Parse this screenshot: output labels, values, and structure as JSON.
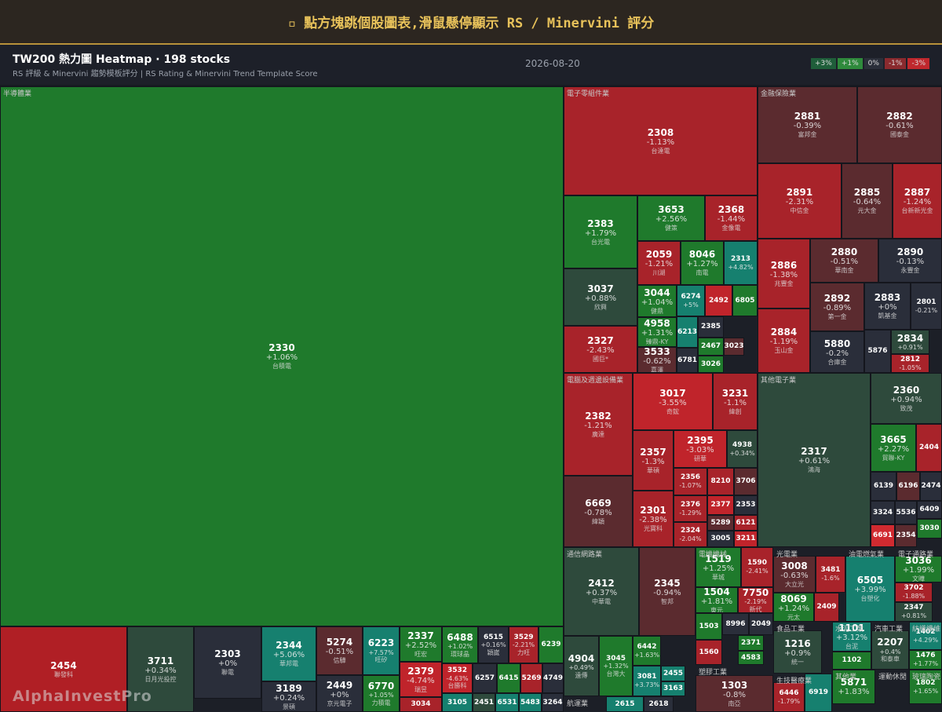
{
  "header": {
    "title": "▫ 點方塊跳個股圖表,滑鼠懸停顯示 RS / Minervini 評分"
  },
  "subheader": {
    "title": "TW200 熱力圖 Heatmap · 198 stocks",
    "subtitle": "RS 評級 & Minervini 趨勢模板評分 | RS Rating & Minervini Trend Template Score",
    "date": "2026-08-20"
  },
  "legend": [
    {
      "label": "+3%",
      "color": "#1f5e3a"
    },
    {
      "label": "+1%",
      "color": "#2f8a3c"
    },
    {
      "label": "0%",
      "color": "#2b2f3a"
    },
    {
      "label": "-1%",
      "color": "#8a2a2e"
    },
    {
      "label": "-3%",
      "color": "#c0282d"
    }
  ],
  "watermark": "AlphaInvestPro",
  "sectors": [
    {
      "name": "半導體業",
      "stocks": [
        {
          "code": "2330",
          "change": 1.06,
          "change_label": "+1.06%",
          "name": "台積電"
        },
        {
          "code": "2454",
          "name": "聯發科",
          "color": "#b01f25"
        },
        {
          "code": "3711",
          "change": 0.34,
          "change_label": "+0.34%",
          "name": "日月光投控"
        },
        {
          "code": "2303",
          "change": 0,
          "change_label": "+0%",
          "name": "聯電"
        },
        {
          "code": "2344",
          "change": 5.06,
          "change_label": "+5.06%",
          "name": "華邦電"
        },
        {
          "code": "3189",
          "change": 0.24,
          "change_label": "+0.24%",
          "name": "景碩"
        },
        {
          "code": "5274",
          "change": -0.51,
          "change_label": "-0.51%",
          "name": "信驊"
        },
        {
          "code": "2449",
          "change": 0,
          "change_label": "+0%",
          "name": "京元電子"
        },
        {
          "code": "6223",
          "change": 7.57,
          "change_label": "+7.57%",
          "name": "旺矽"
        },
        {
          "code": "6770",
          "change": 1.05,
          "change_label": "+1.05%",
          "name": "力積電"
        },
        {
          "code": "2337",
          "change": 2.52,
          "change_label": "+2.52%",
          "name": "旺宏"
        },
        {
          "code": "2379",
          "change": -4.74,
          "change_label": "-4.74%",
          "name": "瑞昱"
        },
        {
          "code": "3034",
          "color": "#a8232a"
        },
        {
          "code": "6488",
          "change": 1.02,
          "change_label": "+1.02%",
          "name": "環球晶"
        },
        {
          "code": "6515",
          "change": 0.16,
          "change_label": "+0.16%",
          "name": "穎崴"
        },
        {
          "code": "3529",
          "change": -2.21,
          "change_label": "-2.21%",
          "name": "力旺"
        },
        {
          "code": "6239",
          "color": "#1f7a2c"
        },
        {
          "code": "3532",
          "change": -4.63,
          "change_label": "-4.63%",
          "name": "台勝科"
        },
        {
          "code": "6257",
          "color": "#2a2e3a"
        },
        {
          "code": "6415",
          "color": "#1f7a2c"
        },
        {
          "code": "5269",
          "color": "#a8232a"
        },
        {
          "code": "4749",
          "color": "#2a2e3a"
        },
        {
          "code": "3105",
          "color": "#16806f"
        },
        {
          "code": "2451",
          "color": "#2e4a3c"
        },
        {
          "code": "6531",
          "color": "#16806f"
        },
        {
          "code": "5483",
          "color": "#16806f"
        },
        {
          "code": "3264",
          "color": "#2a2e3a"
        }
      ]
    },
    {
      "name": "電子零組件業",
      "stocks": [
        {
          "code": "2308",
          "change": -1.13,
          "change_label": "-1.13%",
          "name": "台達電"
        },
        {
          "code": "2383",
          "change": 1.79,
          "change_label": "+1.79%",
          "name": "台光電"
        },
        {
          "code": "3037",
          "change": 0.88,
          "change_label": "+0.88%",
          "name": "欣興"
        },
        {
          "code": "2327",
          "change": -2.43,
          "change_label": "-2.43%",
          "name": "國巨*"
        },
        {
          "code": "3653",
          "change": 2.56,
          "change_label": "+2.56%",
          "name": "健策"
        },
        {
          "code": "2368",
          "change": -1.44,
          "change_label": "-1.44%",
          "name": "金像電"
        },
        {
          "code": "2059",
          "change": -1.21,
          "change_label": "-1.21%",
          "name": "川湖"
        },
        {
          "code": "8046",
          "change": 1.27,
          "change_label": "+1.27%",
          "name": "南電"
        },
        {
          "code": "2313",
          "change": 4.82,
          "change_label": "+4.82%"
        },
        {
          "code": "3044",
          "change": 1.04,
          "change_label": "+1.04%",
          "name": "健鼎"
        },
        {
          "code": "4958",
          "change": 1.31,
          "change_label": "+1.31%",
          "name": "臻鼎-KY"
        },
        {
          "code": "3533",
          "change": -0.62,
          "change_label": "-0.62%",
          "name": "嘉澤"
        },
        {
          "code": "6274",
          "change": 5,
          "change_label": "+5%"
        },
        {
          "code": "2492",
          "color": "#c0242b"
        },
        {
          "code": "6805",
          "color": "#1f7a2c"
        },
        {
          "code": "6213",
          "color": "#16806f"
        },
        {
          "code": "2385",
          "color": "#2a2e3a"
        },
        {
          "code": "2467",
          "color": "#1f7a2c"
        },
        {
          "code": "3026",
          "color": "#1f7a2c"
        },
        {
          "code": "6781",
          "color": "#2a2e3a"
        },
        {
          "code": "3023",
          "color": "#5b2b2f"
        }
      ]
    },
    {
      "name": "金融保險業",
      "stocks": [
        {
          "code": "2881",
          "change": -0.39,
          "change_label": "-0.39%",
          "name": "富邦金"
        },
        {
          "code": "2882",
          "change": -0.61,
          "change_label": "-0.61%",
          "name": "國泰金"
        },
        {
          "code": "2891",
          "change": -2.31,
          "change_label": "-2.31%",
          "name": "中信金"
        },
        {
          "code": "2885",
          "change": -0.64,
          "change_label": "-0.64%",
          "name": "元大金"
        },
        {
          "code": "2887",
          "change": -1.24,
          "change_label": "-1.24%",
          "name": "台新新光金"
        },
        {
          "code": "2886",
          "change": -1.38,
          "change_label": "-1.38%",
          "name": "兆豐金"
        },
        {
          "code": "2884",
          "change": -1.19,
          "change_label": "-1.19%",
          "name": "玉山金"
        },
        {
          "code": "2880",
          "change": -0.51,
          "change_label": "-0.51%",
          "name": "華南金"
        },
        {
          "code": "2890",
          "change": -0.13,
          "change_label": "-0.13%",
          "name": "永豐金"
        },
        {
          "code": "2892",
          "change": -0.89,
          "change_label": "-0.89%",
          "name": "第一金"
        },
        {
          "code": "2883",
          "change": 0,
          "change_label": "+0%",
          "name": "凱基金"
        },
        {
          "code": "2801",
          "change": -0.21,
          "change_label": "-0.21%"
        },
        {
          "code": "5880",
          "change": -0.2,
          "change_label": "-0.2%",
          "name": "合庫金"
        },
        {
          "code": "5876",
          "color": "#2a2e3a"
        },
        {
          "code": "2834",
          "change": 0.91,
          "change_label": "+0.91%"
        },
        {
          "code": "2812",
          "change": -1.05,
          "change_label": "-1.05%"
        }
      ]
    },
    {
      "name": "電腦及週邊設備業",
      "stocks": [
        {
          "code": "2382",
          "change": -1.21,
          "change_label": "-1.21%",
          "name": "廣達"
        },
        {
          "code": "6669",
          "change": -0.78,
          "change_label": "-0.78%",
          "name": "緯穎"
        },
        {
          "code": "3017",
          "change": -3.55,
          "change_label": "-3.55%",
          "name": "奇鋐"
        },
        {
          "code": "3231",
          "change": -1.1,
          "change_label": "-1.1%",
          "name": "緯創"
        },
        {
          "code": "2357",
          "change": -1.3,
          "change_label": "-1.3%",
          "name": "華碩"
        },
        {
          "code": "2301",
          "change": -2.38,
          "change_label": "-2.38%",
          "name": "光寶科"
        },
        {
          "code": "2395",
          "change": -3.03,
          "change_label": "-3.03%",
          "name": "研華"
        },
        {
          "code": "4938",
          "change": 0.34,
          "change_label": "+0.34%"
        },
        {
          "code": "2356",
          "change": -1.07,
          "change_label": "-1.07%"
        },
        {
          "code": "8210",
          "color": "#a8232a"
        },
        {
          "code": "3706",
          "color": "#5b2b2f"
        },
        {
          "code": "2376",
          "change": -1.29,
          "change_label": "-1.29%"
        },
        {
          "code": "2377",
          "color": "#c0242b"
        },
        {
          "code": "2353",
          "color": "#2a2e3a"
        },
        {
          "code": "2324",
          "change": -2.04,
          "change_label": "-2.04%"
        },
        {
          "code": "5289",
          "color": "#5b2b2f"
        },
        {
          "code": "6121",
          "color": "#a8232a"
        },
        {
          "code": "3005",
          "color": "#2a2e3a"
        },
        {
          "code": "3211",
          "color": "#c0242b"
        }
      ]
    },
    {
      "name": "其他電子業",
      "stocks": [
        {
          "code": "2317",
          "change": 0.61,
          "change_label": "+0.61%",
          "name": "鴻海"
        },
        {
          "code": "2360",
          "change": 0.94,
          "change_label": "+0.94%",
          "name": "致茂"
        },
        {
          "code": "3665",
          "change": 2.27,
          "change_label": "+2.27%",
          "name": "貿聯-KY"
        },
        {
          "code": "2404",
          "color": "#a8232a"
        },
        {
          "code": "6139",
          "color": "#2a2e3a"
        },
        {
          "code": "6196",
          "color": "#5b2b2f"
        },
        {
          "code": "2474",
          "color": "#2a2e3a"
        },
        {
          "code": "3324",
          "color": "#2a2e3a"
        },
        {
          "code": "5536",
          "color": "#2a2e3a"
        },
        {
          "code": "6409",
          "color": "#2a2e3a"
        },
        {
          "code": "6691",
          "color": "#d02a30"
        },
        {
          "code": "2354",
          "color": "#5b2b2f"
        },
        {
          "code": "3030",
          "color": "#1f7a2c"
        }
      ]
    },
    {
      "name": "通信網路業",
      "stocks": [
        {
          "code": "2412",
          "change": 0.37,
          "change_label": "+0.37%",
          "name": "中華電"
        },
        {
          "code": "2345",
          "change": -0.94,
          "change_label": "-0.94%",
          "name": "智邦"
        },
        {
          "code": "4904",
          "change": 0.49,
          "change_label": "+0.49%",
          "name": "遠傳"
        },
        {
          "code": "3045",
          "change": 1.32,
          "change_label": "+1.32%",
          "name": "台灣大"
        },
        {
          "code": "6442",
          "change": 1.63,
          "change_label": "+1.63%"
        },
        {
          "code": "3081",
          "change": 3.73,
          "change_label": "+3.73%"
        },
        {
          "code": "2455",
          "color": "#16806f"
        },
        {
          "code": "3163",
          "color": "#16806f"
        }
      ]
    },
    {
      "name": "航運業",
      "stocks": [
        {
          "code": "2615",
          "color": "#16806f"
        },
        {
          "code": "2618",
          "color": "#2a2e3a"
        }
      ]
    },
    {
      "name": "電機機械",
      "stocks": [
        {
          "code": "1519",
          "change": 1.25,
          "change_label": "+1.25%",
          "name": "華城"
        },
        {
          "code": "1590",
          "change": -2.41,
          "change_label": "-2.41%"
        },
        {
          "code": "1504",
          "change": 1.81,
          "change_label": "+1.81%",
          "name": "東元"
        },
        {
          "code": "7750",
          "change": -2.19,
          "change_label": "-2.19%",
          "name": "新代"
        },
        {
          "code": "1503",
          "color": "#1f7a2c"
        },
        {
          "code": "8996",
          "color": "#2a2e3a"
        },
        {
          "code": "2049",
          "color": "#2a2e3a"
        },
        {
          "code": "1560",
          "color": "#a8232a"
        },
        {
          "code": "2371",
          "color": "#1f7a2c"
        },
        {
          "code": "4583",
          "color": "#1f7a2c"
        }
      ]
    },
    {
      "name": "塑膠工業",
      "stocks": [
        {
          "code": "1303",
          "change": -0.8,
          "change_label": "-0.8%",
          "name": "南亞"
        }
      ]
    },
    {
      "name": "光電業",
      "stocks": [
        {
          "code": "3008",
          "change": -0.63,
          "change_label": "-0.63%",
          "name": "大立光"
        },
        {
          "code": "3481",
          "change": -1.6,
          "change_label": "-1.6%"
        },
        {
          "code": "8069",
          "change": 1.24,
          "change_label": "+1.24%",
          "name": "元太"
        },
        {
          "code": "2409",
          "color": "#a8232a"
        }
      ]
    },
    {
      "name": "油電燃氣業",
      "stocks": [
        {
          "code": "6505",
          "change": 3.99,
          "change_label": "+3.99%",
          "name": "台塑化"
        }
      ]
    },
    {
      "name": "電子通路業",
      "stocks": [
        {
          "code": "3036",
          "change": 1.99,
          "change_label": "+1.99%",
          "name": "文曄"
        },
        {
          "code": "3702",
          "change": -1.88,
          "change_label": "-1.88%"
        },
        {
          "code": "2347",
          "change": 0.81,
          "change_label": "+0.81%"
        }
      ]
    },
    {
      "name": "食品工業",
      "stocks": [
        {
          "code": "1216",
          "change": 0.9,
          "change_label": "+0.9%",
          "name": "統一"
        }
      ]
    },
    {
      "name": "水泥工業",
      "stocks": [
        {
          "code": "1101",
          "change": 3.12,
          "change_label": "+3.12%",
          "name": "台泥"
        },
        {
          "code": "1102",
          "color": "#1f7a2c"
        }
      ]
    },
    {
      "name": "汽車工業",
      "stocks": [
        {
          "code": "2207",
          "change": 0.4,
          "change_label": "+0.4%",
          "name": "和泰車"
        }
      ]
    },
    {
      "name": "紡織纖維",
      "stocks": [
        {
          "code": "1402",
          "change": 4.29,
          "change_label": "+4.29%"
        },
        {
          "code": "1476",
          "change": 1.77,
          "change_label": "+1.77%"
        }
      ]
    },
    {
      "name": "生技醫療業",
      "stocks": [
        {
          "code": "6446",
          "change": -1.79,
          "change_label": "-1.79%"
        },
        {
          "code": "6919",
          "color": "#16806f"
        }
      ]
    },
    {
      "name": "其他業",
      "stocks": [
        {
          "code": "5871",
          "change": 1.83,
          "change_label": "+1.83%"
        }
      ]
    },
    {
      "name": "運動休閒",
      "stocks": []
    },
    {
      "name": "玻璃陶瓷",
      "stocks": [
        {
          "code": "1802",
          "change": 1.65,
          "change_label": "+1.65%"
        }
      ]
    }
  ]
}
